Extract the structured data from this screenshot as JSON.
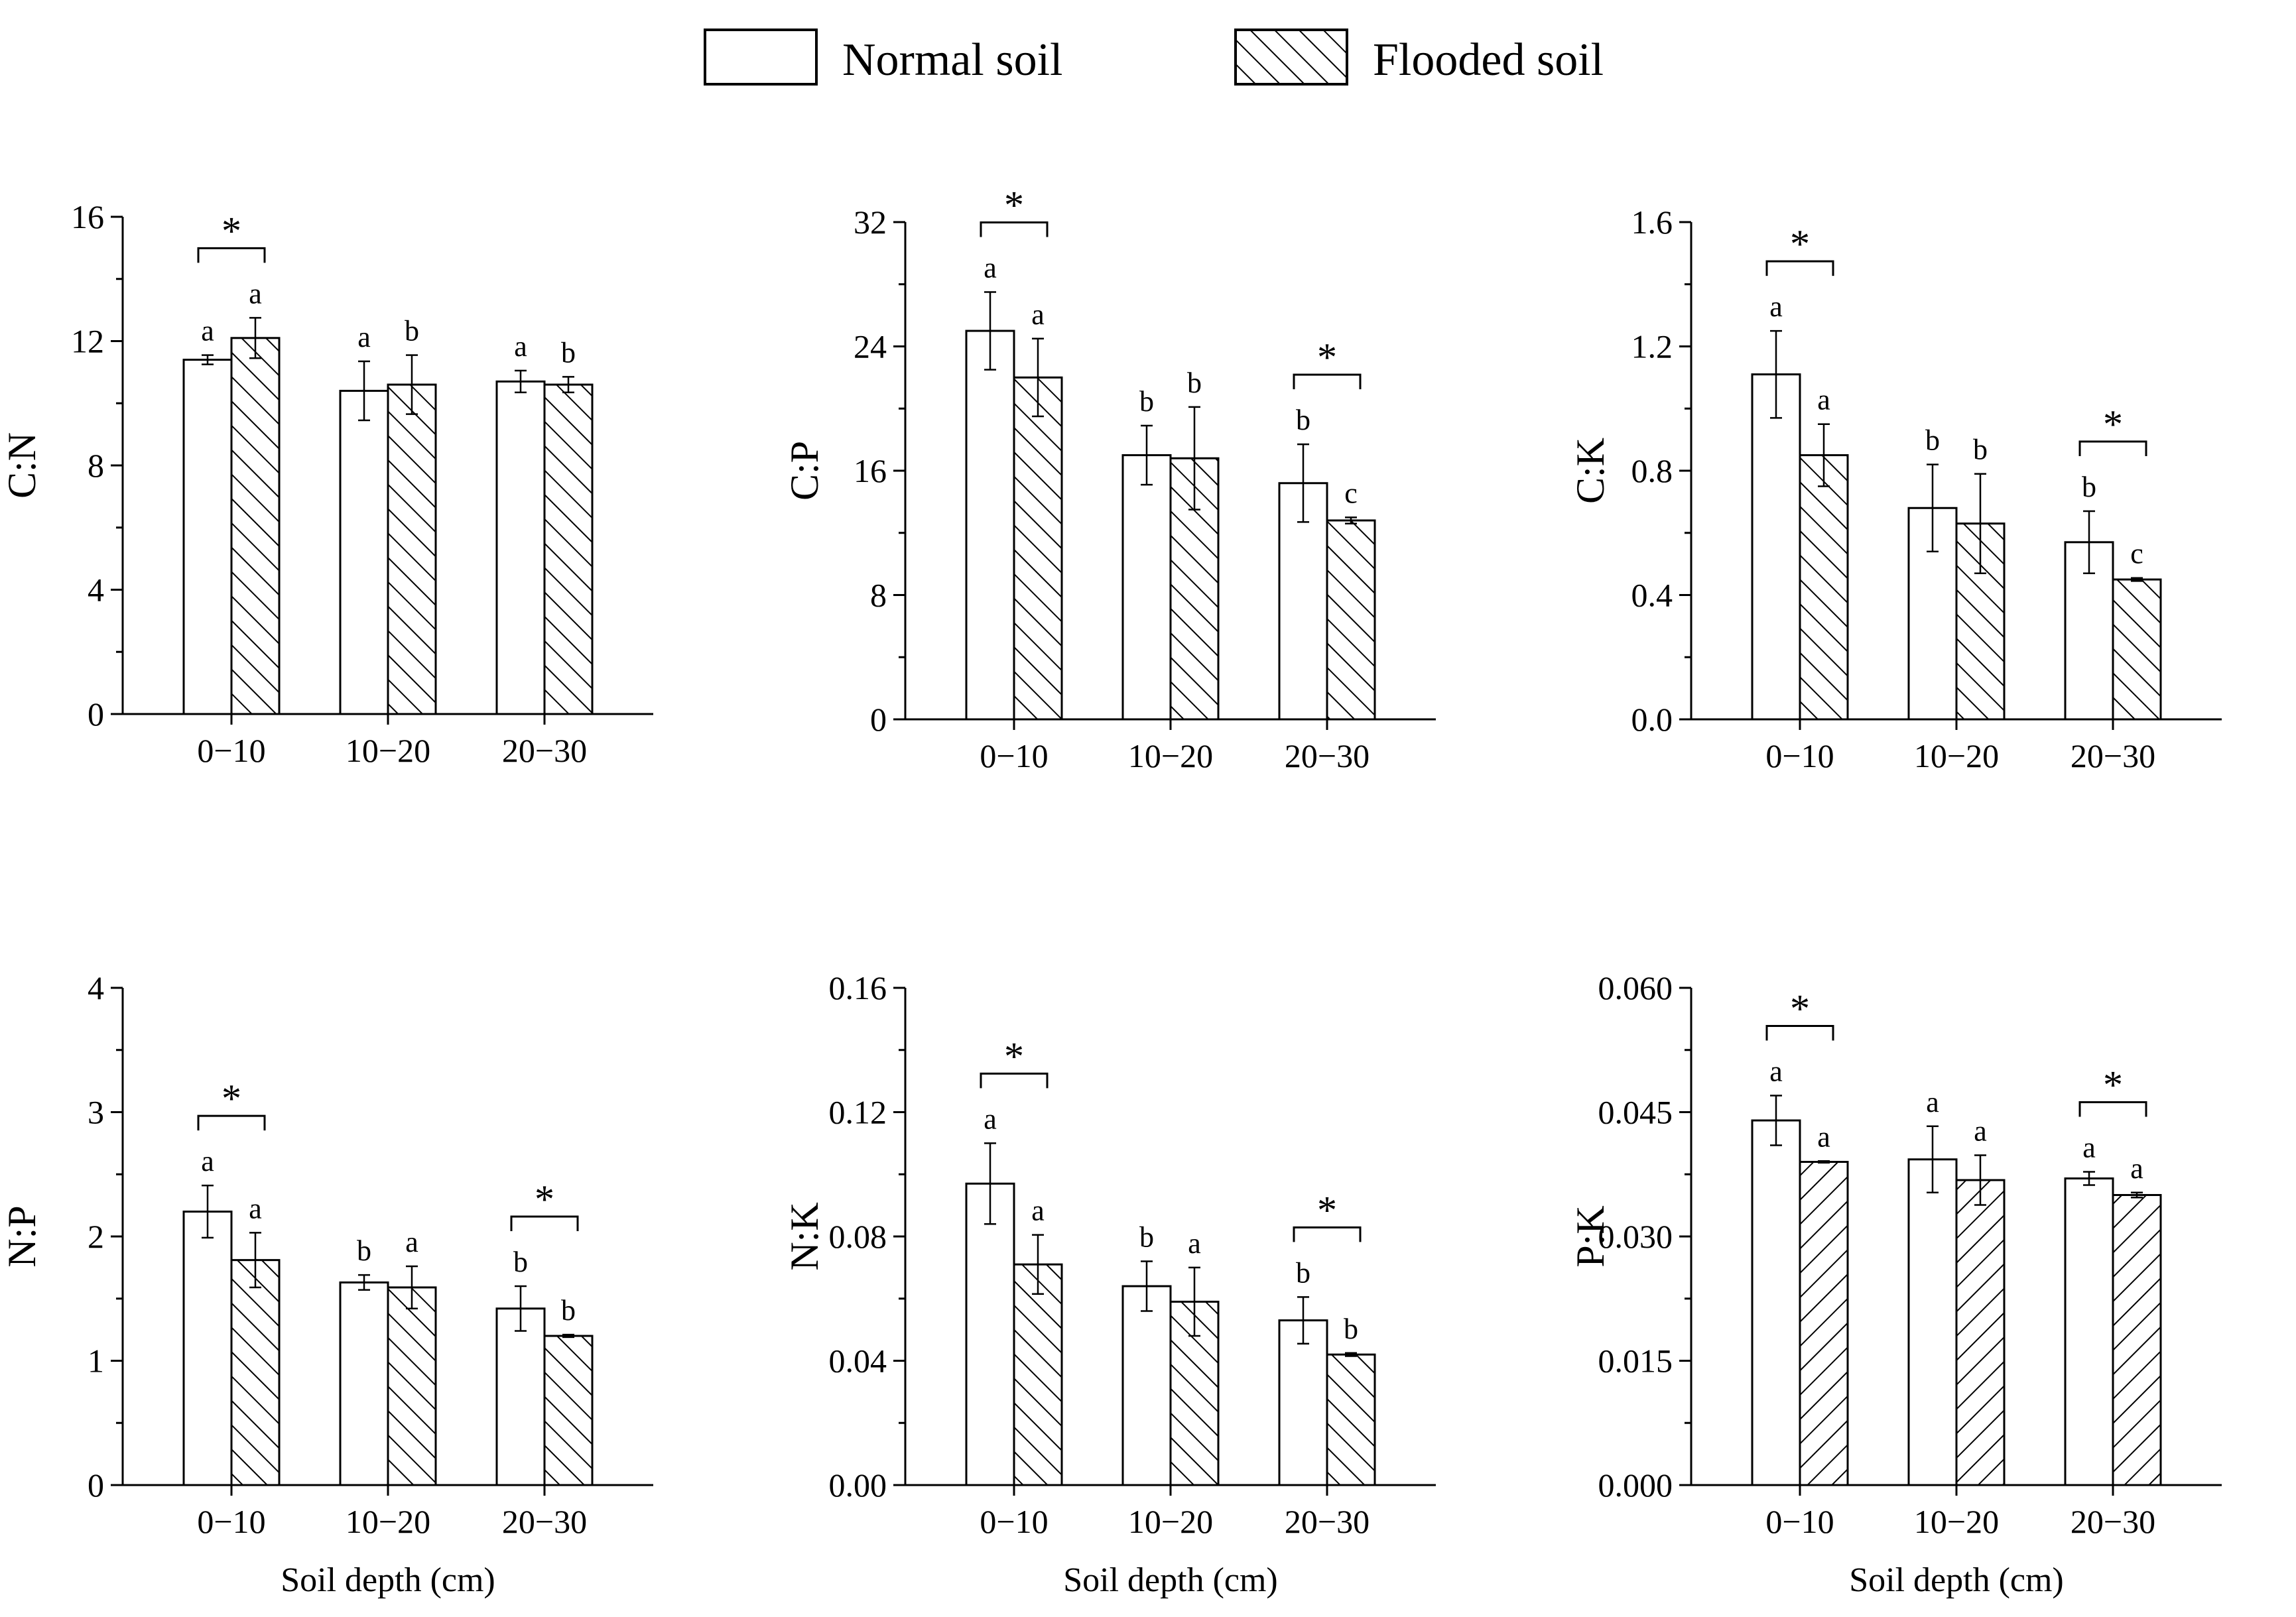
{
  "legend": {
    "normal": "Normal soil",
    "flooded": "Flooded soil"
  },
  "colors": {
    "bar_fill": "#ffffff",
    "stroke": "#000000"
  },
  "chart_data": [
    {
      "type": "bar",
      "ylabel": "C:N",
      "xlabel": "",
      "categories": [
        "0−10",
        "10−20",
        "20−30"
      ],
      "ylim": [
        0,
        16
      ],
      "yticks": [
        "0",
        "4",
        "8",
        "12",
        "16"
      ],
      "hatch": "backslash",
      "series": [
        {
          "name": "Normal soil",
          "values": [
            11.4,
            10.4,
            10.7
          ],
          "err": [
            0.15,
            0.95,
            0.35
          ],
          "letters": [
            "a",
            "a",
            "a"
          ]
        },
        {
          "name": "Flooded soil",
          "values": [
            12.1,
            10.6,
            10.6
          ],
          "err": [
            0.65,
            0.95,
            0.25
          ],
          "letters": [
            "a",
            "b",
            "b"
          ]
        }
      ],
      "sig": [
        {
          "label": "*",
          "group": 0
        }
      ]
    },
    {
      "type": "bar",
      "ylabel": "C:P",
      "xlabel": "",
      "categories": [
        "0−10",
        "10−20",
        "20−30"
      ],
      "ylim": [
        0,
        32
      ],
      "yticks": [
        "0",
        "8",
        "16",
        "24",
        "32"
      ],
      "hatch": "backslash",
      "series": [
        {
          "name": "Normal soil",
          "values": [
            25.0,
            17.0,
            15.2
          ],
          "err": [
            2.5,
            1.9,
            2.5
          ],
          "letters": [
            "a",
            "b",
            "b"
          ]
        },
        {
          "name": "Flooded soil",
          "values": [
            22.0,
            16.8,
            12.8
          ],
          "err": [
            2.5,
            3.3,
            0.2
          ],
          "letters": [
            "a",
            "b",
            "c"
          ]
        }
      ],
      "sig": [
        {
          "label": "*",
          "group": 0
        },
        {
          "label": "*",
          "group": 2
        }
      ]
    },
    {
      "type": "bar",
      "ylabel": "C:K",
      "xlabel": "",
      "categories": [
        "0−10",
        "10−20",
        "20−30"
      ],
      "ylim": [
        0,
        1.6
      ],
      "yticks": [
        "0.0",
        "0.4",
        "0.8",
        "1.2",
        "1.6"
      ],
      "hatch": "backslash",
      "series": [
        {
          "name": "Normal soil",
          "values": [
            1.11,
            0.68,
            0.57
          ],
          "err": [
            0.14,
            0.14,
            0.1
          ],
          "letters": [
            "a",
            "b",
            "b"
          ]
        },
        {
          "name": "Flooded soil",
          "values": [
            0.85,
            0.63,
            0.45
          ],
          "err": [
            0.1,
            0.16,
            0.005
          ],
          "letters": [
            "a",
            "b",
            "c"
          ]
        }
      ],
      "sig": [
        {
          "label": "*",
          "group": 0
        },
        {
          "label": "*",
          "group": 2
        }
      ]
    },
    {
      "type": "bar",
      "ylabel": "N:P",
      "xlabel": "Soil depth (cm)",
      "categories": [
        "0−10",
        "10−20",
        "20−30"
      ],
      "ylim": [
        0,
        4
      ],
      "yticks": [
        "0",
        "1",
        "2",
        "3",
        "4"
      ],
      "hatch": "backslash",
      "series": [
        {
          "name": "Normal soil",
          "values": [
            2.2,
            1.63,
            1.42
          ],
          "err": [
            0.21,
            0.06,
            0.18
          ],
          "letters": [
            "a",
            "b",
            "b"
          ]
        },
        {
          "name": "Flooded soil",
          "values": [
            1.81,
            1.59,
            1.2
          ],
          "err": [
            0.22,
            0.17,
            0.01
          ],
          "letters": [
            "a",
            "a",
            "b"
          ]
        }
      ],
      "sig": [
        {
          "label": "*",
          "group": 0
        },
        {
          "label": "*",
          "group": 2
        }
      ]
    },
    {
      "type": "bar",
      "ylabel": "N:K",
      "xlabel": "Soil depth (cm)",
      "categories": [
        "0−10",
        "10−20",
        "20−30"
      ],
      "ylim": [
        0,
        0.16
      ],
      "yticks": [
        "0.00",
        "0.04",
        "0.08",
        "0.12",
        "0.16"
      ],
      "hatch": "backslash",
      "series": [
        {
          "name": "Normal soil",
          "values": [
            0.097,
            0.064,
            0.053
          ],
          "err": [
            0.013,
            0.008,
            0.0075
          ],
          "letters": [
            "a",
            "b",
            "b"
          ]
        },
        {
          "name": "Flooded soil",
          "values": [
            0.071,
            0.059,
            0.042
          ],
          "err": [
            0.0095,
            0.011,
            0.0005
          ],
          "letters": [
            "a",
            "a",
            "b"
          ]
        }
      ],
      "sig": [
        {
          "label": "*",
          "group": 0
        },
        {
          "label": "*",
          "group": 2
        }
      ]
    },
    {
      "type": "bar",
      "ylabel": "P:K",
      "xlabel": "Soil depth (cm)",
      "categories": [
        "0−10",
        "10−20",
        "20−30"
      ],
      "ylim": [
        0,
        0.06
      ],
      "yticks": [
        "0.000",
        "0.015",
        "0.030",
        "0.045",
        "0.060"
      ],
      "hatch": "slash",
      "series": [
        {
          "name": "Normal soil",
          "values": [
            0.044,
            0.0393,
            0.037
          ],
          "err": [
            0.003,
            0.004,
            0.0008
          ],
          "letters": [
            "a",
            "a",
            "a"
          ]
        },
        {
          "name": "Flooded soil",
          "values": [
            0.039,
            0.0368,
            0.035
          ],
          "err": [
            0.0001,
            0.003,
            0.0003
          ],
          "letters": [
            "a",
            "a",
            "a"
          ]
        }
      ],
      "sig": [
        {
          "label": "*",
          "group": 0
        },
        {
          "label": "*",
          "group": 2
        }
      ]
    }
  ]
}
